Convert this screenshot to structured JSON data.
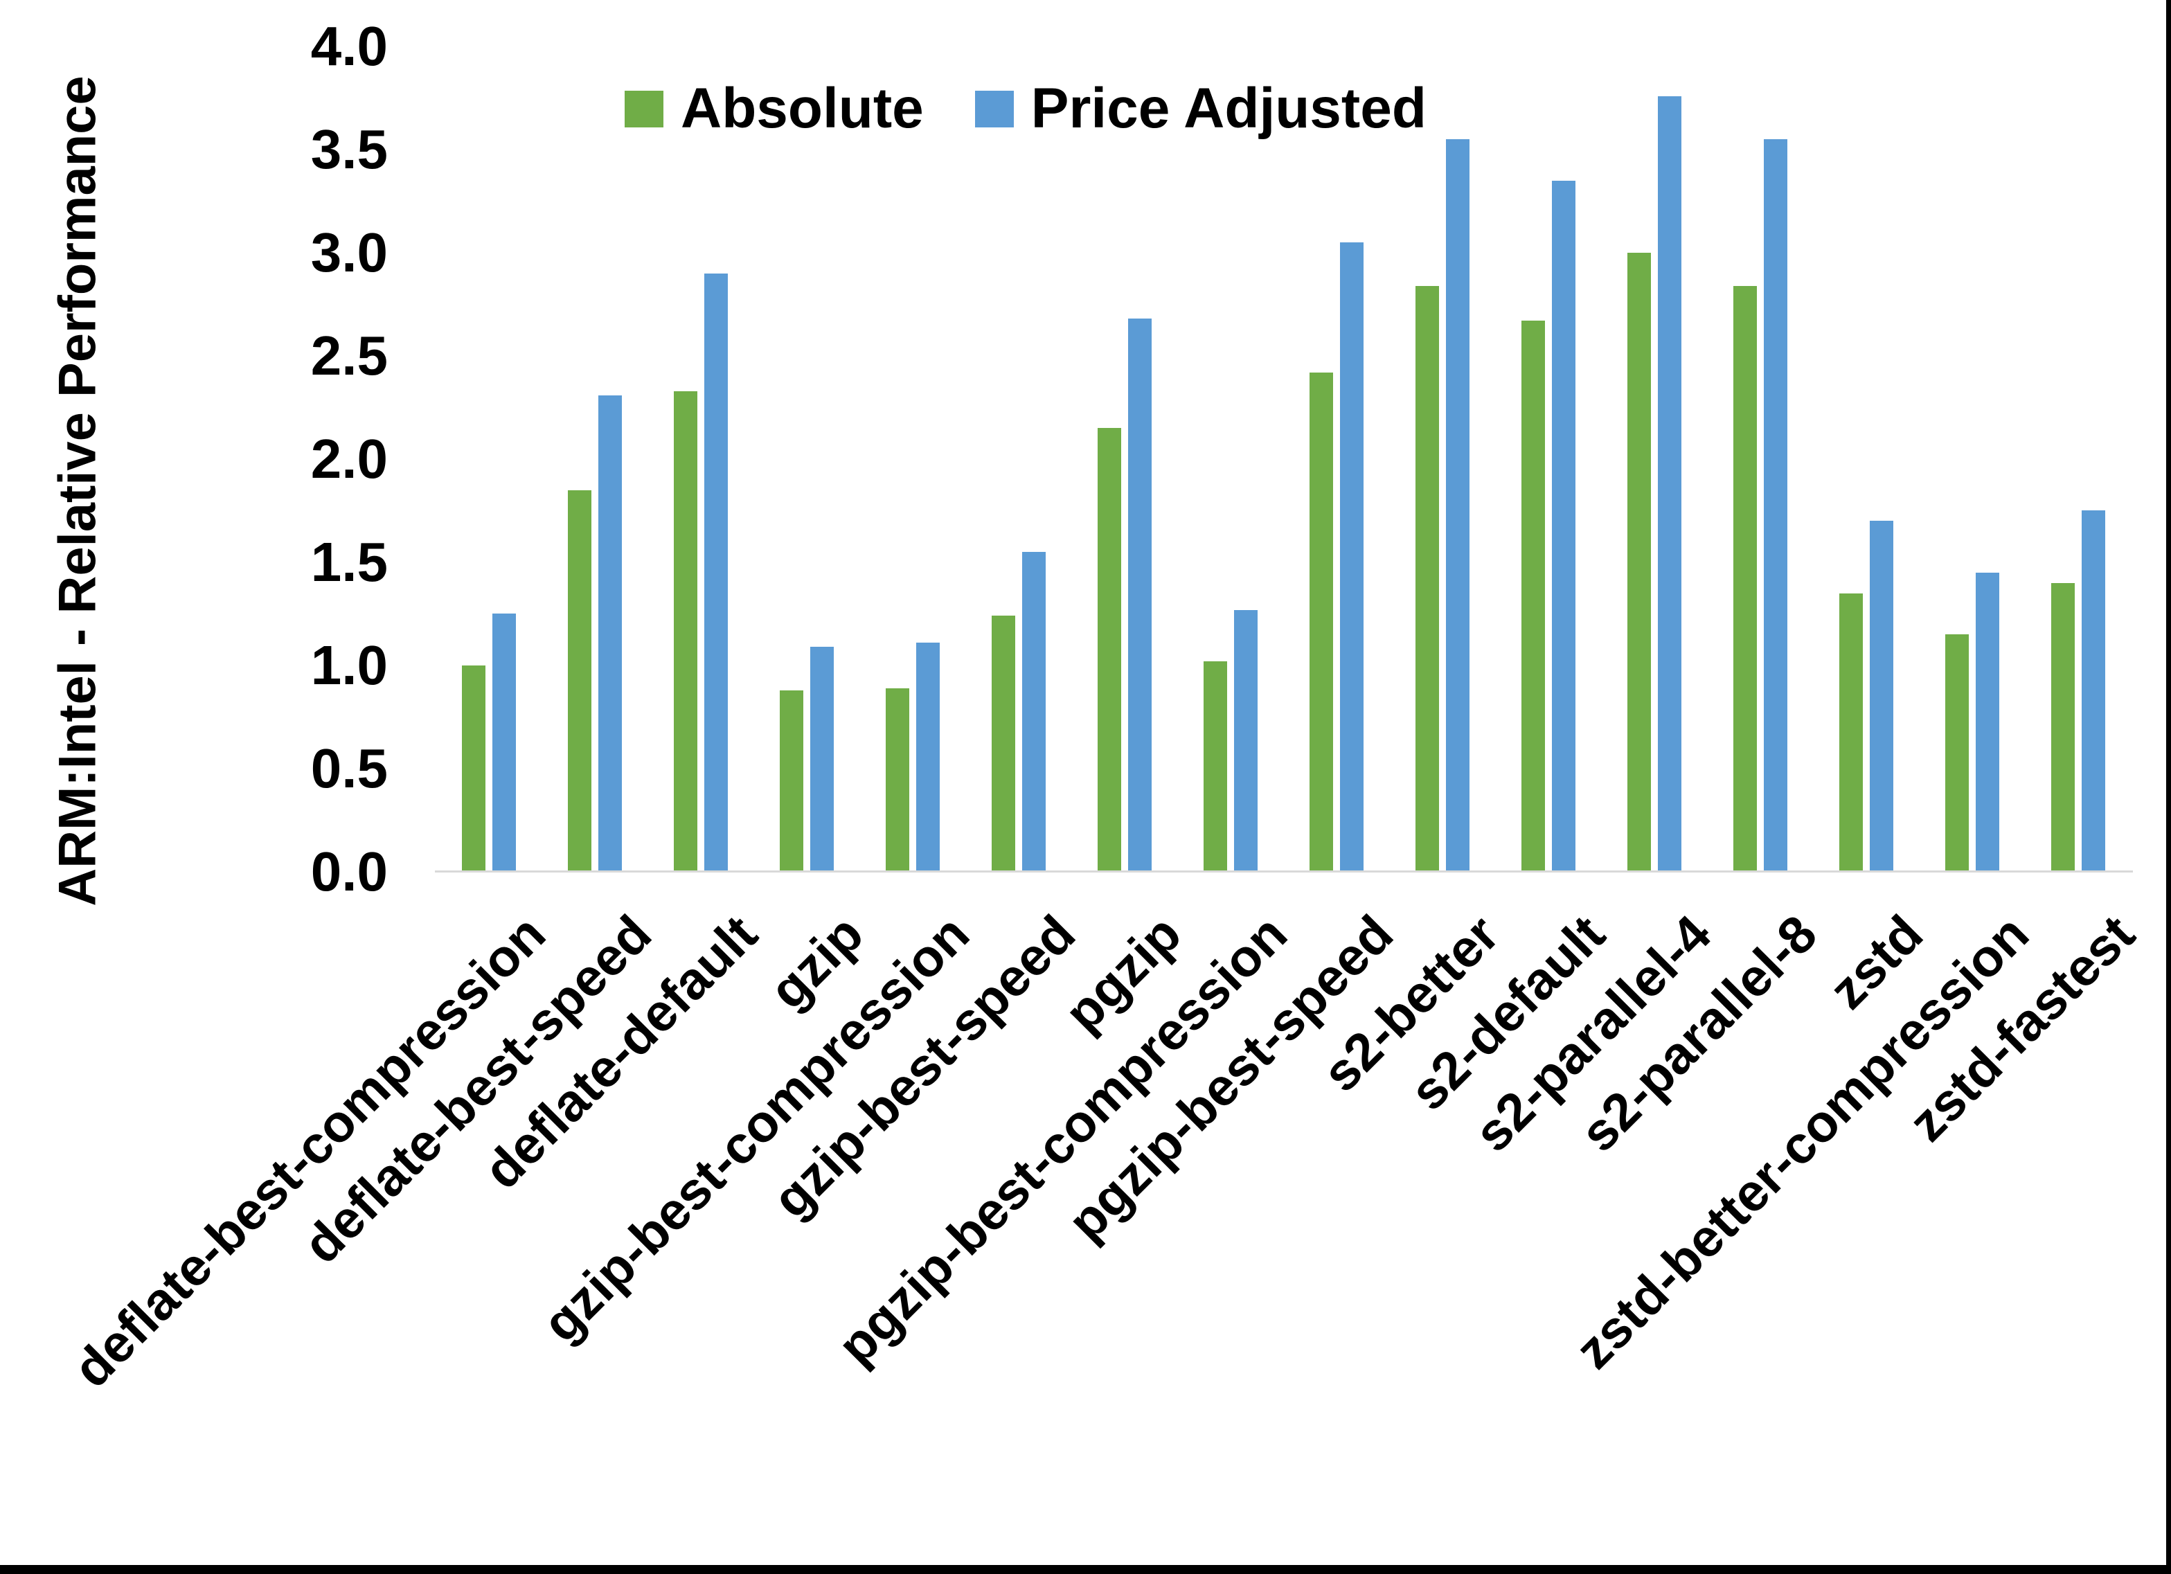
{
  "chart_data": {
    "type": "bar",
    "title": "",
    "ylabel": "ARM:Intel - Relative Performance",
    "xlabel": "",
    "ylim": [
      0.0,
      4.0
    ],
    "ytick_step": 0.5,
    "ytick_labels": [
      "0.0",
      "0.5",
      "1.0",
      "1.5",
      "2.0",
      "2.5",
      "3.0",
      "3.5",
      "4.0"
    ],
    "grid": false,
    "legend_position": "top",
    "axis_line_color": "#D9D9D9",
    "text_color": "#000000",
    "categories": [
      "deflate-best-compression",
      "deflate-best-speed",
      "deflate-default",
      "gzip",
      "gzip-best-compression",
      "gzip-best-speed",
      "pgzip",
      "pgzip-best-compression",
      "pgzip-best-speed",
      "s2-better",
      "s2-default",
      "s2-parallel-4",
      "s2-parallel-8",
      "zstd",
      "zstd-better-compression",
      "zstd-fastest"
    ],
    "series": [
      {
        "name": "Absolute",
        "color": "#70AD47",
        "values": [
          1.0,
          1.85,
          2.33,
          0.88,
          0.89,
          1.24,
          2.15,
          1.02,
          2.42,
          2.84,
          2.67,
          3.0,
          2.84,
          1.35,
          1.15,
          1.4
        ]
      },
      {
        "name": "Price Adjusted",
        "color": "#5B9BD5",
        "values": [
          1.25,
          2.31,
          2.9,
          1.09,
          1.11,
          1.55,
          2.68,
          1.27,
          3.05,
          3.55,
          3.35,
          3.76,
          3.55,
          1.7,
          1.45,
          1.75
        ]
      }
    ]
  }
}
